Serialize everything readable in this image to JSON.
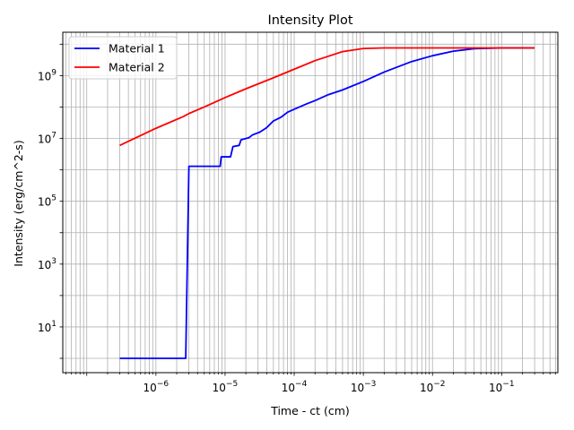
{
  "chart_data": {
    "type": "line",
    "title": "Intensity Plot",
    "xlabel": "Time - ct (cm)",
    "ylabel": "Intensity (erg/cm^2-s)",
    "x_scale": "log",
    "y_scale": "log",
    "xlim": [
      4.5e-08,
      0.65
    ],
    "ylim": [
      0.35,
      24000000000.0
    ],
    "grid": "both (major and minor)",
    "legend_position": "top-left",
    "x_ticks": [
      {
        "value": 1e-06,
        "base": "10",
        "exp": "−6"
      },
      {
        "value": 1e-05,
        "base": "10",
        "exp": "−5"
      },
      {
        "value": 0.0001,
        "base": "10",
        "exp": "−4"
      },
      {
        "value": 0.001,
        "base": "10",
        "exp": "−3"
      },
      {
        "value": 0.01,
        "base": "10",
        "exp": "−2"
      },
      {
        "value": 0.1,
        "base": "10",
        "exp": "−1"
      }
    ],
    "y_ticks": [
      {
        "value": 10,
        "base": "10",
        "exp": "1"
      },
      {
        "value": 1000,
        "base": "10",
        "exp": "3"
      },
      {
        "value": 100000,
        "base": "10",
        "exp": "5"
      },
      {
        "value": 10000000,
        "base": "10",
        "exp": "7"
      },
      {
        "value": 1000000000,
        "base": "10",
        "exp": "9"
      }
    ],
    "series": [
      {
        "name": "Material 1",
        "color": "#0000ff",
        "points": [
          [
            3e-07,
            1.0
          ],
          [
            2.7e-06,
            1.0
          ],
          [
            3e-06,
            1300000.0
          ],
          [
            8.5e-06,
            1300000.0
          ],
          [
            8.8e-06,
            2600000.0
          ],
          [
            1.2e-05,
            2600000.0
          ],
          [
            1.3e-05,
            5500000.0
          ],
          [
            1.6e-05,
            6000000.0
          ],
          [
            1.7e-05,
            9000000.0
          ],
          [
            2.2e-05,
            10500000.0
          ],
          [
            2.5e-05,
            13000000.0
          ],
          [
            3.2e-05,
            16000000.0
          ],
          [
            4e-05,
            22000000.0
          ],
          [
            5e-05,
            36000000.0
          ],
          [
            6.5e-05,
            48000000.0
          ],
          [
            8e-05,
            68000000.0
          ],
          [
            0.0001,
            85000000.0
          ],
          [
            0.00015,
            125000000.0
          ],
          [
            0.0002,
            160000000.0
          ],
          [
            0.0003,
            240000000.0
          ],
          [
            0.0005,
            350000000.0
          ],
          [
            0.001,
            650000000.0
          ],
          [
            0.002,
            1300000000.0
          ],
          [
            0.005,
            2800000000.0
          ],
          [
            0.01,
            4300000000.0
          ],
          [
            0.02,
            6000000000.0
          ],
          [
            0.04,
            7200000000.0
          ],
          [
            0.1,
            7600000000.0
          ],
          [
            0.3,
            7600000000.0
          ]
        ]
      },
      {
        "name": "Material 2",
        "color": "#ff0000",
        "points": [
          [
            3e-07,
            6000000.0
          ],
          [
            1e-06,
            21000000.0
          ],
          [
            2.5e-06,
            50000000.0
          ],
          [
            3e-06,
            62000000.0
          ],
          [
            5e-06,
            100000000.0
          ],
          [
            1e-05,
            200000000.0
          ],
          [
            2e-05,
            380000000.0
          ],
          [
            5e-05,
            850000000.0
          ],
          [
            0.0001,
            1600000000.0
          ],
          [
            0.0002,
            3000000000.0
          ],
          [
            0.0005,
            5800000000.0
          ],
          [
            0.001,
            7300000000.0
          ],
          [
            0.002,
            7600000000.0
          ],
          [
            0.01,
            7600000000.0
          ],
          [
            0.3,
            7600000000.0
          ]
        ]
      }
    ]
  }
}
